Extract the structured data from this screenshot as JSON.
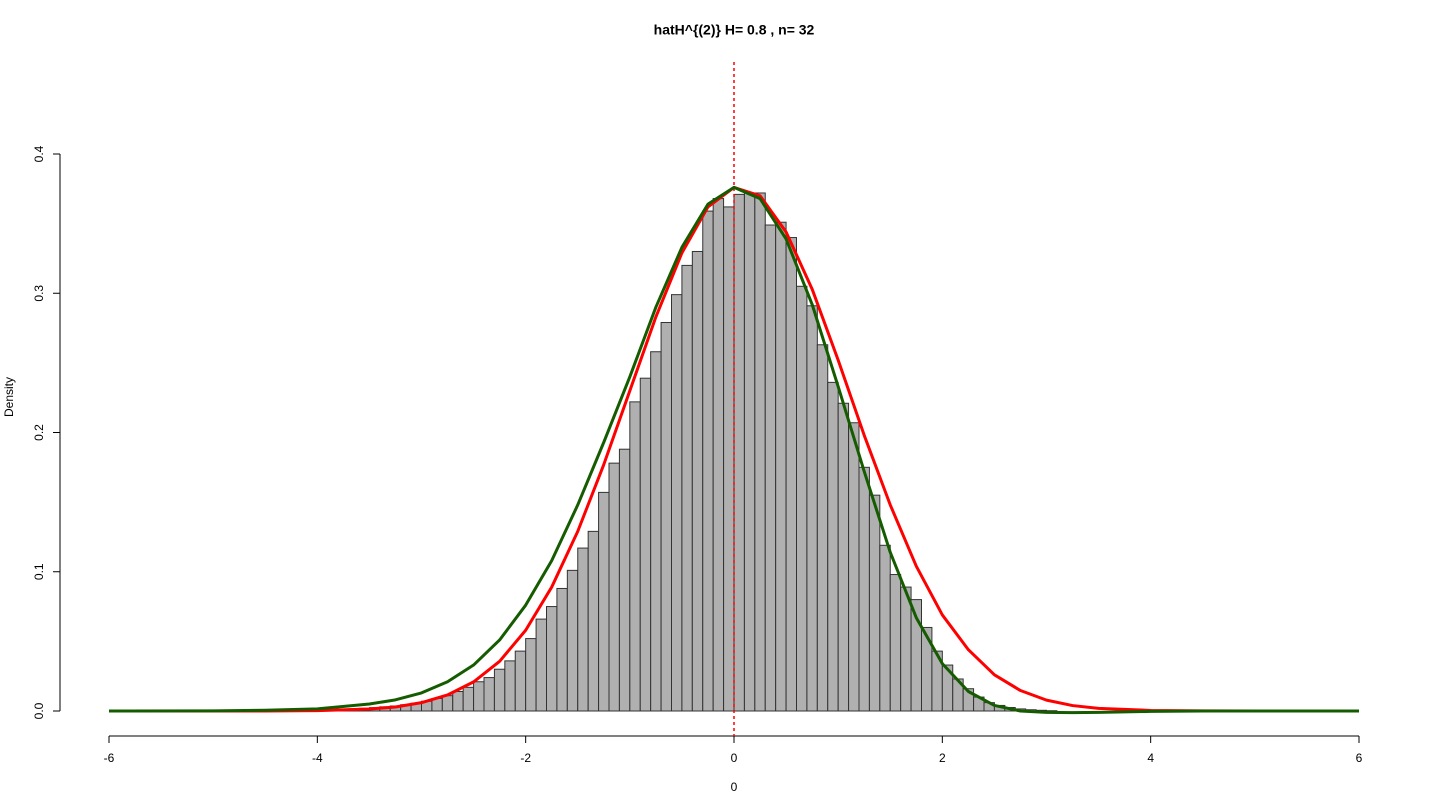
{
  "chart_data": {
    "type": "histogram",
    "title": "hatH^{(2)} H= 0.8 , n= 32",
    "xlabel": "0",
    "ylabel": "Density",
    "bins": [
      -4.5,
      -4.4,
      -4.3,
      -4.2,
      -4.1,
      -4.0,
      -3.9,
      -3.8,
      -3.7,
      -3.6,
      -3.5,
      -3.4,
      -3.3,
      -3.2,
      -3.1,
      -3.0,
      -2.9,
      -2.8,
      -2.7,
      -2.6,
      -2.5,
      -2.4,
      -2.3,
      -2.2,
      -2.1,
      -2.0,
      -1.9,
      -1.8,
      -1.7,
      -1.6,
      -1.5,
      -1.4,
      -1.3,
      -1.2,
      -1.1,
      -1.0,
      -0.9,
      -0.8,
      -0.7,
      -0.6,
      -0.5,
      -0.4,
      -0.3,
      -0.2,
      -0.1,
      0,
      0.1,
      0.2,
      0.3,
      0.4,
      0.5,
      0.6,
      0.7,
      0.8,
      0.9,
      1.0,
      1.1,
      1.2,
      1.3,
      1.4,
      1.5,
      1.6,
      1.7,
      1.8,
      1.9,
      2.0,
      2.1,
      2.2,
      2.3,
      2.4,
      2.5,
      2.6,
      2.7,
      2.8,
      2.9,
      3.0,
      3.1
    ],
    "values": [
      0.0002,
      0.0002,
      0.0003,
      0.0004,
      0.0005,
      0.0007,
      0.0009,
      0.0012,
      0.0015,
      0.0019,
      0.0024,
      0.003,
      0.0036,
      0.0045,
      0.0055,
      0.007,
      0.009,
      0.011,
      0.014,
      0.017,
      0.021,
      0.024,
      0.03,
      0.036,
      0.043,
      0.052,
      0.066,
      0.075,
      0.088,
      0.101,
      0.117,
      0.129,
      0.157,
      0.178,
      0.188,
      0.222,
      0.239,
      0.258,
      0.279,
      0.299,
      0.32,
      0.33,
      0.359,
      0.368,
      0.362,
      0.371,
      0.372,
      0.372,
      0.349,
      0.351,
      0.34,
      0.305,
      0.291,
      0.263,
      0.236,
      0.221,
      0.207,
      0.175,
      0.155,
      0.119,
      0.098,
      0.089,
      0.08,
      0.06,
      0.043,
      0.033,
      0.023,
      0.016,
      0.01,
      0.006,
      0.004,
      0.0025,
      0.0015,
      0.0009,
      0.0005,
      0.0002
    ],
    "color": "#b0b0b0",
    "edgecolor": "#333333",
    "xlim": [
      -6,
      6
    ],
    "ylim": [
      0,
      0.4
    ],
    "xticks": [
      -6,
      -4,
      -2,
      0,
      2,
      4,
      6
    ],
    "yticks": [
      {
        "value": 0,
        "label": "0.0"
      },
      0.1,
      0.2,
      0.3,
      0.4
    ],
    "vline": 0,
    "vline_color": "#ff0000",
    "curves": [
      {
        "color": "#ff0000",
        "x": [
          -6,
          -5,
          -4.5,
          -4,
          -3.5,
          -3.25,
          -3,
          -2.75,
          -2.5,
          -2.25,
          -2,
          -1.75,
          -1.5,
          -1.25,
          -1,
          -0.75,
          -0.5,
          -0.25,
          0,
          0.25,
          0.5,
          0.75,
          1,
          1.25,
          1.5,
          1.75,
          2,
          2.25,
          2.5,
          2.75,
          3,
          3.25,
          3.5,
          4,
          4.5,
          5,
          6
        ],
        "values": [
          0,
          0,
          4e-05,
          0.00026,
          0.0014,
          0.0029,
          0.006,
          0.0115,
          0.0209,
          0.0357,
          0.058,
          0.089,
          0.129,
          0.177,
          0.23,
          0.283,
          0.329,
          0.362,
          0.376,
          0.37,
          0.344,
          0.303,
          0.252,
          0.198,
          0.148,
          0.104,
          0.069,
          0.044,
          0.026,
          0.0147,
          0.0078,
          0.0039,
          0.0019,
          0.0004,
          0.0001,
          0,
          0
        ]
      },
      {
        "color": "#155c00",
        "x": [
          -6,
          -5,
          -4.5,
          -4,
          -3.5,
          -3.25,
          -3,
          -2.75,
          -2.5,
          -2.25,
          -2,
          -1.75,
          -1.5,
          -1.25,
          -1,
          -0.75,
          -0.5,
          -0.25,
          0,
          0.25,
          0.5,
          0.75,
          1,
          1.25,
          1.5,
          1.75,
          2,
          2.25,
          2.5,
          2.75,
          3,
          3.25,
          3.5,
          4,
          4.5,
          5,
          6
        ],
        "values": [
          0,
          0.0001,
          0.0005,
          0.0015,
          0.005,
          0.008,
          0.013,
          0.021,
          0.033,
          0.051,
          0.076,
          0.108,
          0.148,
          0.193,
          0.24,
          0.29,
          0.333,
          0.364,
          0.376,
          0.368,
          0.339,
          0.292,
          0.233,
          0.172,
          0.114,
          0.067,
          0.034,
          0.014,
          0.004,
          0,
          -0.001,
          -0.0012,
          -0.001,
          -0.0003,
          0,
          0,
          0
        ]
      }
    ]
  }
}
